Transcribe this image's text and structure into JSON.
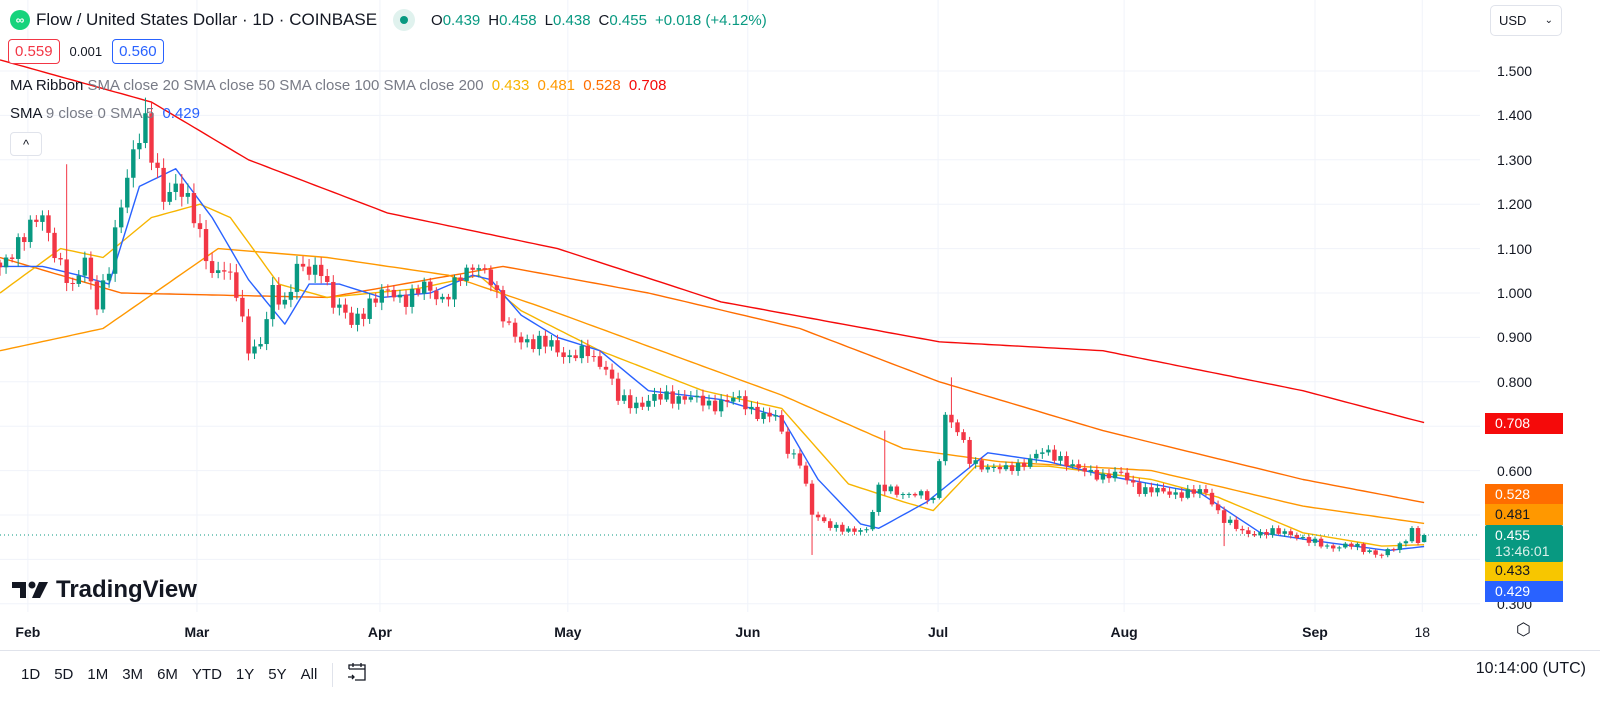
{
  "header": {
    "logo_glyph": "∞",
    "title": "Flow / United States Dollar · 1D · COINBASE",
    "ohlc": {
      "o_label": "O",
      "o": "0.439",
      "h_label": "H",
      "h": "0.458",
      "l_label": "L",
      "l": "0.438",
      "c_label": "C",
      "c": "0.455",
      "change": "+0.018 (+4.12%)"
    },
    "bid": "0.559",
    "spread": "0.001",
    "ask": "0.560",
    "currency": "USD"
  },
  "legends": {
    "ribbon_name": "MA Ribbon",
    "ribbon_params": "SMA close 20 SMA close 50 SMA close 100 SMA close 200",
    "ribbon_values": [
      "0.433",
      "0.481",
      "0.528",
      "0.708"
    ],
    "sma_name": "SMA",
    "sma_params": "9 close 0 SMA 5",
    "sma_value": "0.429",
    "collapse_glyph": "^"
  },
  "colors": {
    "up": "#089981",
    "down": "#f23645",
    "sma20": "#f7b500",
    "sma50": "#ff9800",
    "sma100": "#ff6d00",
    "sma200": "#f50a0a",
    "sma9": "#2962ff",
    "grid": "#f0f3fa"
  },
  "price_axis": {
    "labels": [
      "1.500",
      "1.400",
      "1.300",
      "1.200",
      "1.100",
      "1.000",
      "0.900",
      "0.800",
      "0.600",
      "0.300"
    ],
    "values": [
      1.5,
      1.4,
      1.3,
      1.2,
      1.1,
      1.0,
      0.9,
      0.8,
      0.6,
      0.3
    ],
    "badges": [
      {
        "label": "0.708",
        "value": 0.708,
        "color": "#f50a0a"
      },
      {
        "label": "0.528",
        "value": 0.528,
        "color": "#ff6d00"
      },
      {
        "label": "0.481",
        "value": 0.481,
        "color": "#ff9800"
      },
      {
        "label": "0.433",
        "value": 0.433,
        "color": "#f7c600"
      },
      {
        "label": "0.429",
        "value": 0.429,
        "color": "#2962ff"
      }
    ],
    "current": {
      "label": "0.455",
      "countdown": "13:46:01",
      "value": 0.455
    }
  },
  "time_axis": {
    "labels": [
      "Feb",
      "Mar",
      "Apr",
      "May",
      "Jun",
      "Jul",
      "Aug",
      "Sep",
      "18"
    ],
    "days": [
      4.6,
      32.5,
      62.7,
      93.7,
      123.4,
      154.8,
      185.5,
      217,
      234.7
    ]
  },
  "branding": "TradingView",
  "bottom_bar": {
    "timeframes": [
      "1D",
      "5D",
      "1M",
      "3M",
      "6M",
      "YTD",
      "1Y",
      "5Y",
      "All"
    ],
    "clock": "10:14:00 (UTC)"
  },
  "chart_data": {
    "type": "candlestick",
    "title": "Flow / United States Dollar · 1D · COINBASE",
    "ylim": [
      0.28,
      1.52
    ],
    "x_unit": "day index",
    "close_waypoints": [
      [
        0,
        1.05
      ],
      [
        3,
        1.12
      ],
      [
        7,
        1.17
      ],
      [
        9,
        1.1
      ],
      [
        12,
        1.0
      ],
      [
        14,
        1.08
      ],
      [
        16,
        0.98
      ],
      [
        18,
        1.05
      ],
      [
        20,
        1.2
      ],
      [
        22,
        1.33
      ],
      [
        24,
        1.38
      ],
      [
        25,
        1.3
      ],
      [
        27,
        1.22
      ],
      [
        29,
        1.25
      ],
      [
        31,
        1.2
      ],
      [
        33,
        1.13
      ],
      [
        35,
        1.05
      ],
      [
        37,
        1.05
      ],
      [
        39,
        1.0
      ],
      [
        41,
        0.88
      ],
      [
        43,
        0.88
      ],
      [
        45,
        1.0
      ],
      [
        47,
        0.98
      ],
      [
        49,
        1.06
      ],
      [
        51,
        1.04
      ],
      [
        53,
        1.06
      ],
      [
        55,
        0.98
      ],
      [
        58,
        0.93
      ],
      [
        61,
        0.98
      ],
      [
        64,
        1.0
      ],
      [
        67,
        0.99
      ],
      [
        70,
        1.01
      ],
      [
        73,
        0.99
      ],
      [
        76,
        1.03
      ],
      [
        79,
        1.07
      ],
      [
        81,
        1.03
      ],
      [
        83,
        0.94
      ],
      [
        85,
        0.91
      ],
      [
        88,
        0.88
      ],
      [
        91,
        0.89
      ],
      [
        94,
        0.85
      ],
      [
        97,
        0.87
      ],
      [
        100,
        0.83
      ],
      [
        102,
        0.76
      ],
      [
        106,
        0.75
      ],
      [
        110,
        0.77
      ],
      [
        114,
        0.76
      ],
      [
        118,
        0.75
      ],
      [
        122,
        0.76
      ],
      [
        126,
        0.72
      ],
      [
        128,
        0.72
      ],
      [
        130,
        0.65
      ],
      [
        132,
        0.62
      ],
      [
        134,
        0.5
      ],
      [
        137,
        0.48
      ],
      [
        140,
        0.46
      ],
      [
        143,
        0.47
      ],
      [
        145,
        0.56
      ],
      [
        148,
        0.55
      ],
      [
        151,
        0.55
      ],
      [
        154,
        0.53
      ],
      [
        156,
        0.73
      ],
      [
        158,
        0.69
      ],
      [
        160,
        0.62
      ],
      [
        163,
        0.61
      ],
      [
        166,
        0.6
      ],
      [
        169,
        0.62
      ],
      [
        172,
        0.64
      ],
      [
        175,
        0.63
      ],
      [
        178,
        0.6
      ],
      [
        182,
        0.59
      ],
      [
        185,
        0.59
      ],
      [
        188,
        0.56
      ],
      [
        192,
        0.55
      ],
      [
        196,
        0.55
      ],
      [
        199,
        0.55
      ],
      [
        202,
        0.49
      ],
      [
        205,
        0.46
      ],
      [
        209,
        0.46
      ],
      [
        213,
        0.46
      ],
      [
        216,
        0.44
      ],
      [
        219,
        0.43
      ],
      [
        223,
        0.43
      ],
      [
        226,
        0.42
      ],
      [
        228,
        0.41
      ],
      [
        231,
        0.43
      ],
      [
        233,
        0.47
      ],
      [
        234,
        0.44
      ],
      [
        235,
        0.455
      ]
    ],
    "notable_wicks": [
      {
        "day": 24,
        "high": 1.44
      },
      {
        "day": 11,
        "high": 1.29
      },
      {
        "day": 134,
        "low": 0.41
      },
      {
        "day": 146,
        "high": 0.69
      },
      {
        "day": 157,
        "high": 0.81
      },
      {
        "day": 202,
        "low": 0.43
      }
    ],
    "last_candle": {
      "open": 0.439,
      "high": 0.458,
      "low": 0.438,
      "close": 0.455
    },
    "series": [
      {
        "name": "SMA close 200",
        "color": "#f50a0a",
        "points": [
          [
            0,
            1.525
          ],
          [
            25,
            1.43
          ],
          [
            41,
            1.3
          ],
          [
            64,
            1.18
          ],
          [
            92,
            1.1
          ],
          [
            119,
            0.98
          ],
          [
            155,
            0.89
          ],
          [
            182,
            0.87
          ],
          [
            215,
            0.78
          ],
          [
            235,
            0.708
          ]
        ]
      },
      {
        "name": "SMA close 100",
        "color": "#ff6d00",
        "points": [
          [
            0,
            1.08
          ],
          [
            20,
            1.0
          ],
          [
            54,
            0.99
          ],
          [
            83,
            1.06
          ],
          [
            107,
            1.0
          ],
          [
            132,
            0.92
          ],
          [
            155,
            0.8
          ],
          [
            182,
            0.69
          ],
          [
            215,
            0.58
          ],
          [
            235,
            0.528
          ]
        ]
      },
      {
        "name": "SMA close 50",
        "color": "#ff9800",
        "points": [
          [
            0,
            0.87
          ],
          [
            17,
            0.92
          ],
          [
            36,
            1.1
          ],
          [
            54,
            1.08
          ],
          [
            74,
            1.04
          ],
          [
            89,
            0.97
          ],
          [
            107,
            0.88
          ],
          [
            129,
            0.77
          ],
          [
            149,
            0.65
          ],
          [
            165,
            0.62
          ],
          [
            190,
            0.6
          ],
          [
            215,
            0.52
          ],
          [
            235,
            0.481
          ]
        ]
      },
      {
        "name": "SMA close 20",
        "color": "#f7b500",
        "points": [
          [
            0,
            1.0
          ],
          [
            10,
            1.1
          ],
          [
            17,
            1.08
          ],
          [
            25,
            1.17
          ],
          [
            33,
            1.2
          ],
          [
            38,
            1.17
          ],
          [
            46,
            1.02
          ],
          [
            54,
            0.99
          ],
          [
            69,
            1.01
          ],
          [
            79,
            1.04
          ],
          [
            86,
            0.96
          ],
          [
            99,
            0.87
          ],
          [
            116,
            0.78
          ],
          [
            129,
            0.74
          ],
          [
            140,
            0.57
          ],
          [
            149,
            0.53
          ],
          [
            154,
            0.51
          ],
          [
            161,
            0.61
          ],
          [
            173,
            0.61
          ],
          [
            190,
            0.58
          ],
          [
            201,
            0.54
          ],
          [
            215,
            0.46
          ],
          [
            228,
            0.43
          ],
          [
            235,
            0.433
          ]
        ]
      },
      {
        "name": "SMA 9",
        "color": "#2962ff",
        "points": [
          [
            0,
            1.06
          ],
          [
            7,
            1.06
          ],
          [
            13,
            1.04
          ],
          [
            18,
            1.02
          ],
          [
            23,
            1.24
          ],
          [
            29,
            1.28
          ],
          [
            35,
            1.17
          ],
          [
            41,
            1.03
          ],
          [
            47,
            0.93
          ],
          [
            51,
            1.02
          ],
          [
            56,
            1.02
          ],
          [
            63,
            0.99
          ],
          [
            71,
            1.0
          ],
          [
            78,
            1.04
          ],
          [
            81,
            1.03
          ],
          [
            86,
            0.95
          ],
          [
            92,
            0.9
          ],
          [
            99,
            0.87
          ],
          [
            107,
            0.78
          ],
          [
            119,
            0.76
          ],
          [
            129,
            0.72
          ],
          [
            135,
            0.58
          ],
          [
            142,
            0.48
          ],
          [
            145,
            0.47
          ],
          [
            153,
            0.53
          ],
          [
            163,
            0.64
          ],
          [
            173,
            0.62
          ],
          [
            182,
            0.59
          ],
          [
            190,
            0.57
          ],
          [
            198,
            0.55
          ],
          [
            208,
            0.46
          ],
          [
            218,
            0.44
          ],
          [
            229,
            0.42
          ],
          [
            235,
            0.429
          ]
        ]
      }
    ]
  }
}
